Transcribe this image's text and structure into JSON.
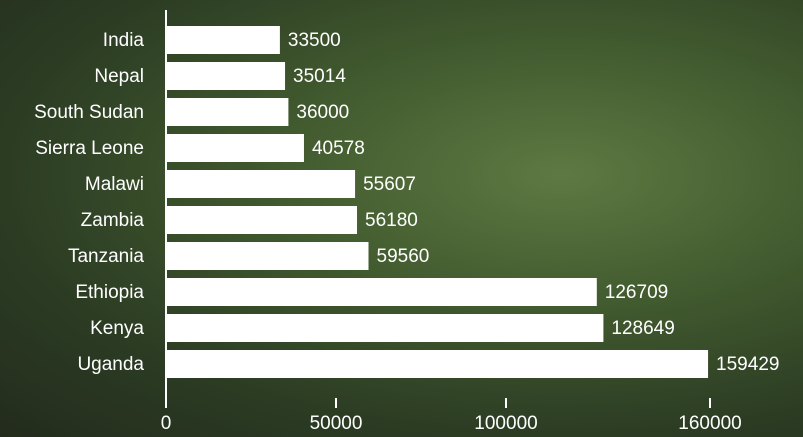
{
  "chart_data": {
    "type": "bar",
    "orientation": "horizontal",
    "categories": [
      "India",
      "Nepal",
      "South Sudan",
      "Sierra Leone",
      "Malawi",
      "Zambia",
      "Tanzania",
      "Ethiopia",
      "Kenya",
      "Uganda"
    ],
    "values": [
      33500,
      35014,
      36000,
      40578,
      55607,
      56180,
      59560,
      126709,
      128649,
      159429
    ],
    "color": "#ffffff",
    "xlim": [
      0,
      160000
    ],
    "xticks": [
      0,
      50000,
      100000,
      160000
    ]
  }
}
